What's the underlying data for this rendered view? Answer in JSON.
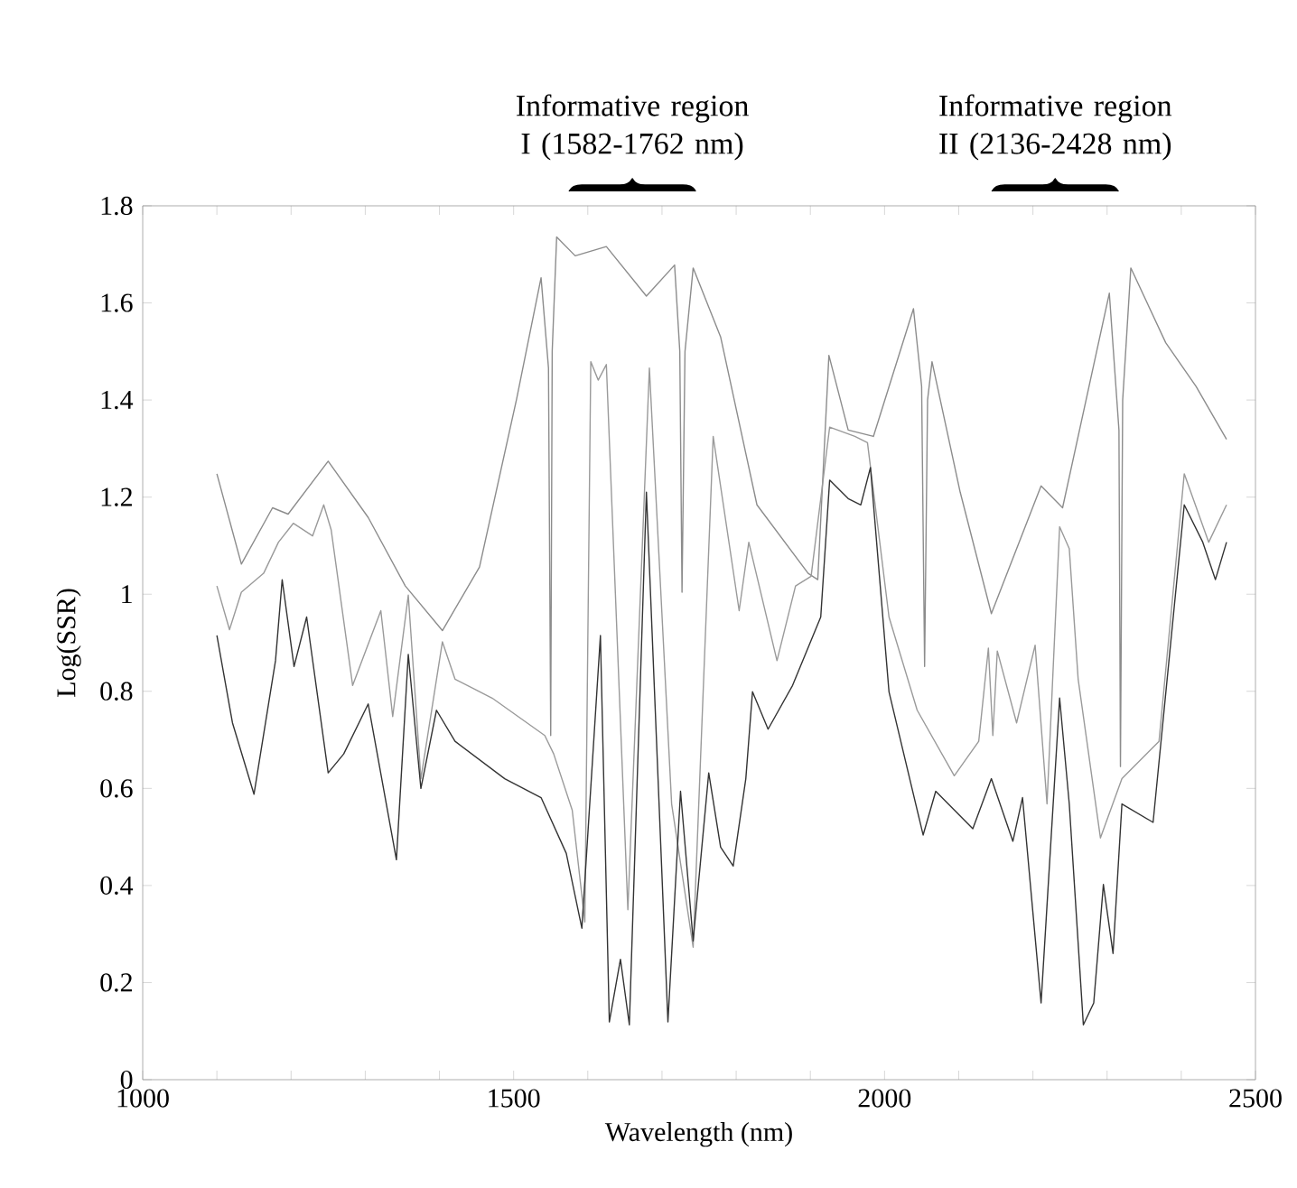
{
  "chart_data": {
    "type": "line",
    "xlabel": "Wavelength (nm)",
    "ylabel": "Log(SSR)",
    "xlim": [
      1000,
      2500
    ],
    "ylim": [
      0,
      1.8
    ],
    "xticks": [
      1000,
      {
        "value": 1100,
        "label": null
      },
      {
        "value": 1200,
        "label": null
      },
      {
        "value": 1300,
        "label": null
      },
      {
        "value": 1400,
        "label": null
      },
      1500,
      {
        "value": 1600,
        "label": null
      },
      {
        "value": 1700,
        "label": null
      },
      {
        "value": 1800,
        "label": null
      },
      {
        "value": 1900,
        "label": null
      },
      2000,
      {
        "value": 2100,
        "label": null
      },
      {
        "value": 2200,
        "label": null
      },
      {
        "value": 2300,
        "label": null
      },
      {
        "value": 2400,
        "label": null
      },
      2500
    ],
    "yticks": [
      0,
      0.2,
      0.4,
      0.6,
      0.8,
      1,
      1.2,
      1.4,
      1.6,
      1.8
    ],
    "grid": false,
    "marker": "none",
    "line_style": "solid",
    "annotations": [
      "Informative region I (1582-1762 nm)",
      "Informative region II (2136-2428 nm)"
    ],
    "series": [
      {
        "color": "#8c8c8c",
        "x": [
          1100,
          1133,
          1175,
          1196,
          1250,
          1304,
          1354,
          1404,
          1454,
          1504,
          1537,
          1547,
          1550,
          1552,
          1558,
          1583,
          1625,
          1679,
          1717,
          1724,
          1727,
          1731,
          1742,
          1779,
          1828,
          1897,
          1910,
          1925,
          1951,
          1985,
          2039,
          2050,
          2054,
          2058,
          2064,
          2102,
          2144,
          2211,
          2240,
          2303,
          2316,
          2318,
          2321,
          2332,
          2379,
          2420,
          2461
        ],
        "values": [
          1.248,
          1.062,
          1.178,
          1.165,
          1.274,
          1.158,
          1.017,
          0.925,
          1.056,
          1.402,
          1.652,
          1.466,
          0.709,
          1.5,
          1.736,
          1.697,
          1.716,
          1.614,
          1.678,
          1.5,
          1.004,
          1.5,
          1.672,
          1.53,
          1.184,
          1.043,
          1.03,
          1.492,
          1.338,
          1.325,
          1.588,
          1.428,
          0.851,
          1.4,
          1.479,
          1.21,
          0.96,
          1.223,
          1.178,
          1.62,
          1.338,
          0.645,
          1.4,
          1.672,
          1.518,
          1.428,
          1.319
        ]
      },
      {
        "color": "#9a9a9a",
        "x": [
          1100,
          1117,
          1133,
          1163,
          1183,
          1203,
          1229,
          1244,
          1254,
          1283,
          1321,
          1337,
          1358,
          1375,
          1404,
          1421,
          1471,
          1542,
          1554,
          1579,
          1596,
          1604,
          1614,
          1625,
          1654,
          1683,
          1713,
          1742,
          1769,
          1804,
          1817,
          1855,
          1880,
          1901,
          1926,
          1960,
          1977,
          2006,
          2044,
          2094,
          2127,
          2140,
          2146,
          2152,
          2178,
          2203,
          2219,
          2236,
          2249,
          2261,
          2291,
          2320,
          2370,
          2404,
          2437,
          2461
        ],
        "values": [
          1.017,
          0.927,
          1.004,
          1.043,
          1.107,
          1.146,
          1.12,
          1.184,
          1.133,
          0.812,
          0.966,
          0.748,
          0.998,
          0.62,
          0.902,
          0.825,
          0.786,
          0.709,
          0.671,
          0.555,
          0.325,
          1.479,
          1.441,
          1.473,
          0.35,
          1.466,
          0.568,
          0.273,
          1.325,
          0.966,
          1.107,
          0.863,
          1.017,
          1.037,
          1.344,
          1.325,
          1.312,
          0.953,
          0.761,
          0.626,
          0.697,
          0.889,
          0.709,
          0.883,
          0.735,
          0.895,
          0.568,
          1.139,
          1.094,
          0.825,
          0.498,
          0.62,
          0.697,
          1.248,
          1.107,
          1.184
        ]
      },
      {
        "color": "#333333",
        "x": [
          1100,
          1121,
          1150,
          1179,
          1188,
          1204,
          1221,
          1250,
          1271,
          1304,
          1342,
          1358,
          1375,
          1396,
          1421,
          1488,
          1537,
          1571,
          1592,
          1617,
          1629,
          1644,
          1656,
          1679,
          1708,
          1725,
          1742,
          1763,
          1779,
          1796,
          1813,
          1822,
          1843,
          1876,
          1914,
          1926,
          1951,
          1968,
          1981,
          2006,
          2052,
          2069,
          2119,
          2144,
          2173,
          2186,
          2211,
          2236,
          2249,
          2268,
          2282,
          2295,
          2308,
          2320,
          2362,
          2404,
          2429,
          2446,
          2461
        ],
        "values": [
          0.915,
          0.735,
          0.588,
          0.863,
          1.03,
          0.851,
          0.953,
          0.632,
          0.671,
          0.774,
          0.453,
          0.876,
          0.6,
          0.761,
          0.697,
          0.62,
          0.581,
          0.466,
          0.312,
          0.915,
          0.119,
          0.248,
          0.113,
          1.21,
          0.119,
          0.594,
          0.286,
          0.632,
          0.479,
          0.44,
          0.62,
          0.799,
          0.722,
          0.812,
          0.953,
          1.235,
          1.197,
          1.184,
          1.261,
          0.799,
          0.504,
          0.594,
          0.517,
          0.62,
          0.491,
          0.581,
          0.158,
          0.786,
          0.568,
          0.113,
          0.158,
          0.402,
          0.26,
          0.568,
          0.53,
          1.184,
          1.107,
          1.03,
          1.107
        ]
      }
    ]
  }
}
